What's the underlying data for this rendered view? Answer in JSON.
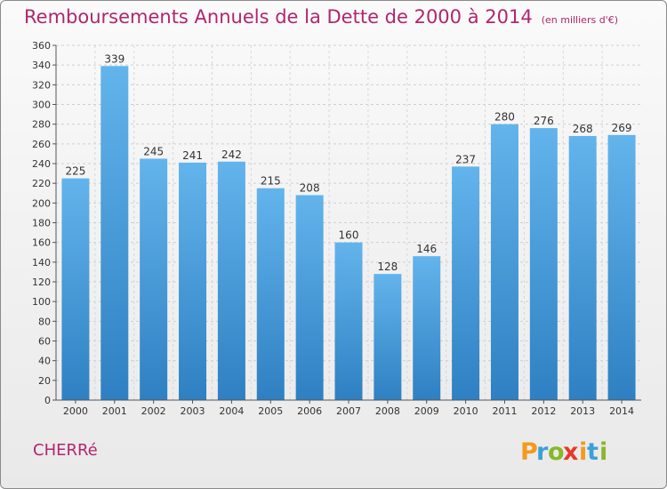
{
  "title": "Remboursements Annuels de la Dette de 2000 à 2014",
  "unit": "(en milliers d'€)",
  "commune": "CHERRé",
  "logo_text": "Proxiti",
  "colors": {
    "accent": "#b0266f",
    "bar_top": "#63b4ec",
    "bar_bottom": "#2e80c2"
  },
  "chart_data": {
    "type": "bar",
    "title": "Remboursements Annuels de la Dette de 2000 à 2014",
    "xlabel": "",
    "ylabel": "",
    "categories": [
      "2000",
      "2001",
      "2002",
      "2003",
      "2004",
      "2005",
      "2006",
      "2007",
      "2008",
      "2009",
      "2010",
      "2011",
      "2012",
      "2013",
      "2014"
    ],
    "values": [
      225,
      339,
      245,
      241,
      242,
      215,
      208,
      160,
      128,
      146,
      237,
      280,
      276,
      268,
      269
    ],
    "ylim": [
      0,
      360
    ],
    "yticks": [
      0,
      20,
      40,
      60,
      80,
      100,
      120,
      140,
      160,
      180,
      200,
      220,
      240,
      260,
      280,
      300,
      320,
      340,
      360
    ],
    "grid": true
  }
}
